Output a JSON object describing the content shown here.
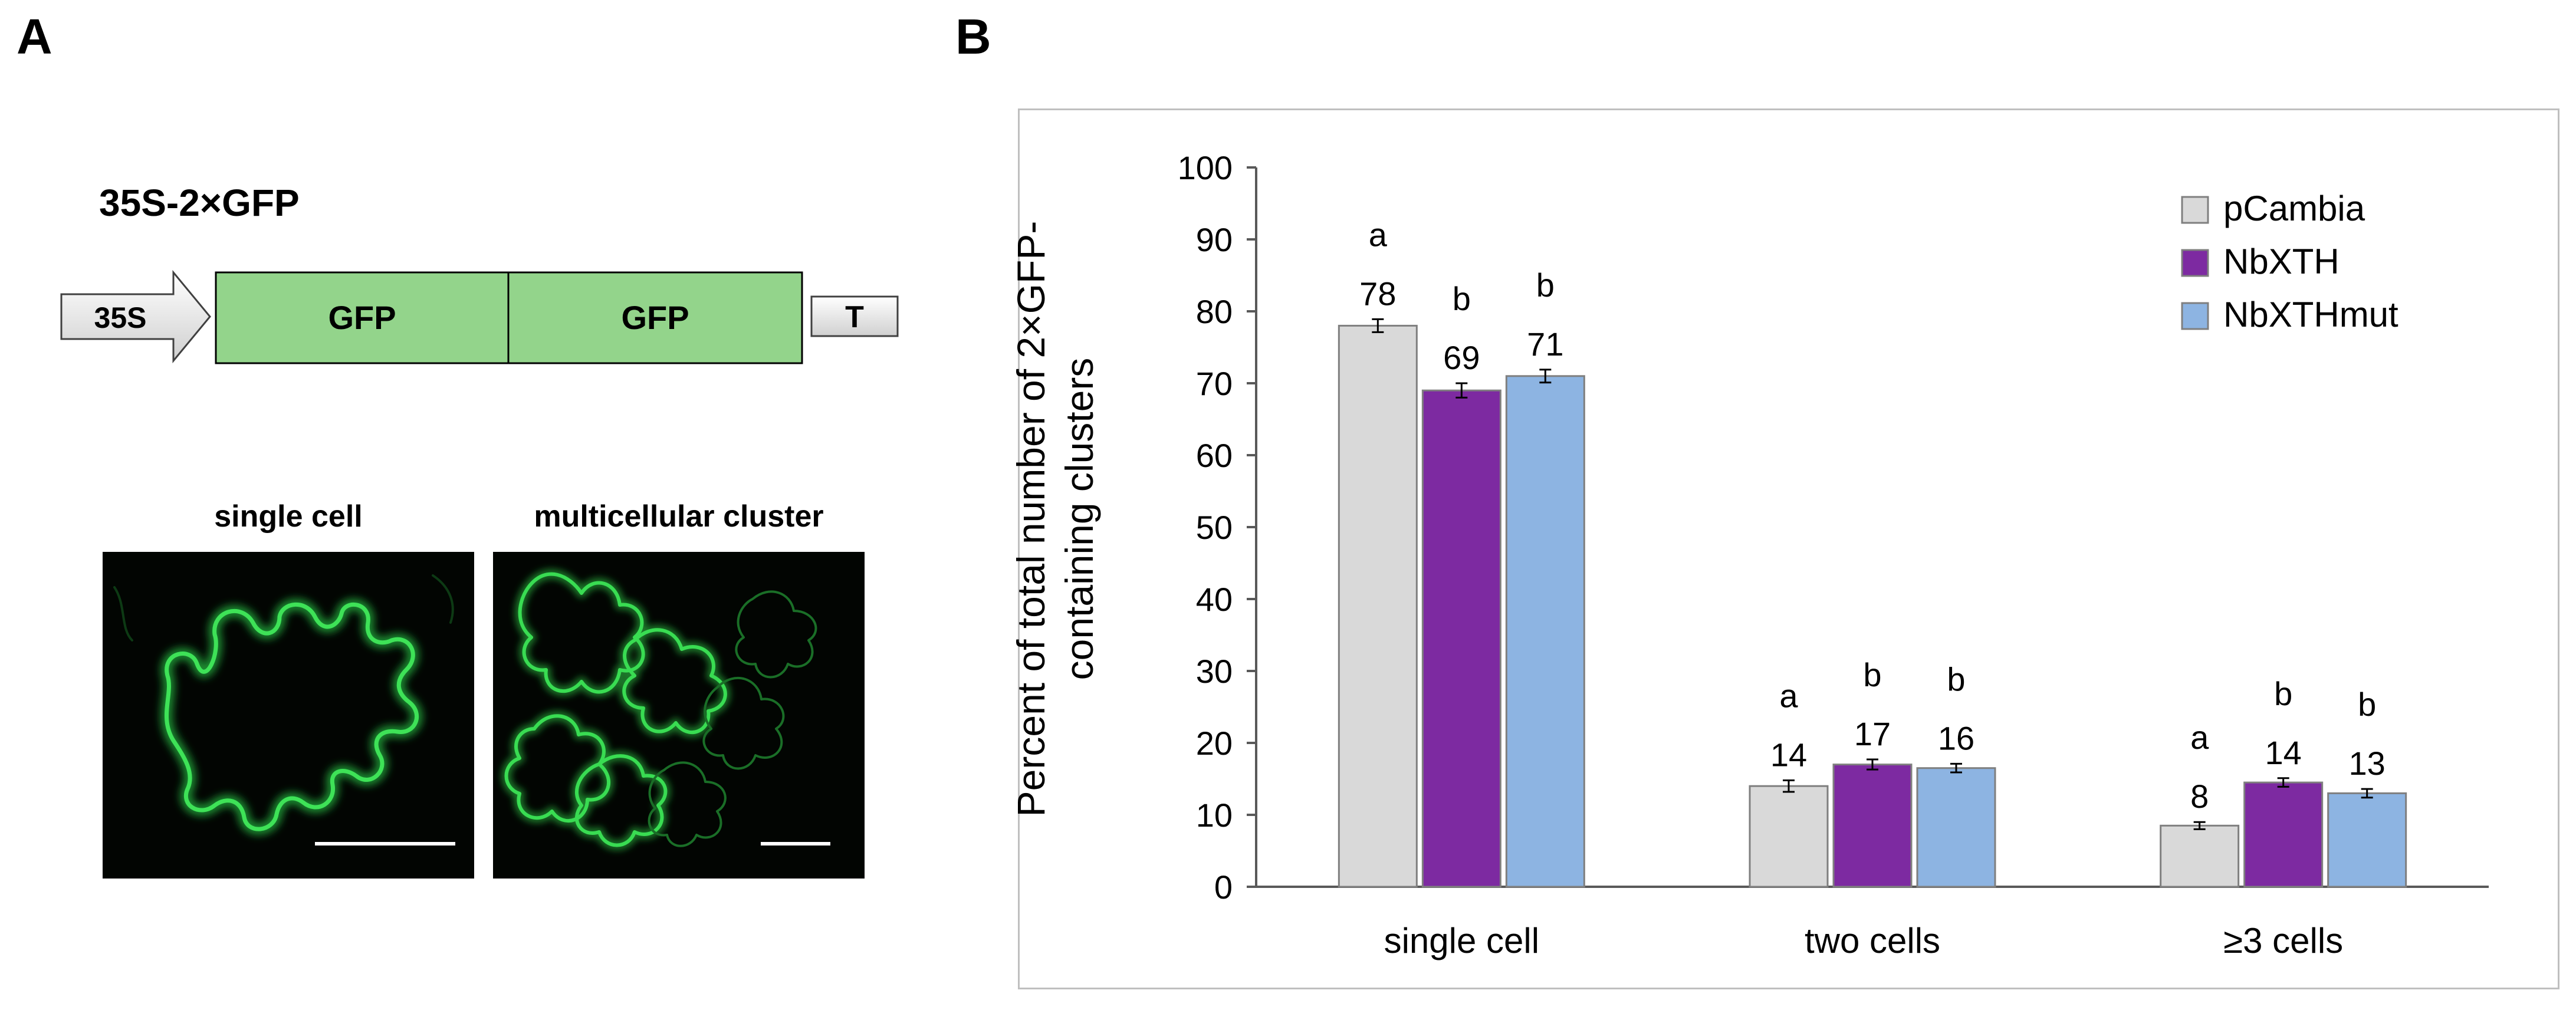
{
  "panels": {
    "a": "A",
    "b": "B"
  },
  "construct": {
    "title": "35S-2×GFP",
    "promoter": "35S",
    "gfp1": "GFP",
    "gfp2": "GFP",
    "terminator": "T",
    "colors": {
      "gfp": "#93d48b",
      "arrow": "#e3e3e3"
    }
  },
  "micrographs": {
    "single": {
      "label": "single cell"
    },
    "multi": {
      "label": "multicellular cluster"
    }
  },
  "chart_data": {
    "type": "bar",
    "title": "",
    "xlabel": "",
    "ylabel": "Percent of total number of 2×GFP-containing clusters",
    "ylabel_lines": [
      "Percent of total number of 2×GFP-",
      "containing clusters"
    ],
    "ylim": [
      0,
      100
    ],
    "yticks": [
      0,
      10,
      20,
      30,
      40,
      50,
      60,
      70,
      80,
      90,
      100
    ],
    "grid": false,
    "legend_position": "top-right",
    "categories": [
      "single cell",
      "two cells",
      "≥3 cells"
    ],
    "series": [
      {
        "name": "pCambia",
        "color": "#d9d9d9",
        "values": [
          78,
          14,
          8.5
        ],
        "errors": [
          0.9,
          0.8,
          0.5
        ],
        "labels": [
          "78",
          "14",
          "8"
        ],
        "letters": [
          "a",
          "a",
          "a"
        ]
      },
      {
        "name": "NbXTH",
        "color": "#7d2aa1",
        "values": [
          69,
          17,
          14.5
        ],
        "errors": [
          1.0,
          0.7,
          0.6
        ],
        "labels": [
          "69",
          "17",
          "14"
        ],
        "letters": [
          "b",
          "b",
          "b"
        ]
      },
      {
        "name": "NbXTHmut",
        "color": "#8db4e2",
        "values": [
          71,
          16.5,
          13
        ],
        "errors": [
          0.9,
          0.6,
          0.6
        ],
        "labels": [
          "71",
          "16",
          "13"
        ],
        "letters": [
          "b",
          "b",
          "b"
        ]
      }
    ]
  }
}
